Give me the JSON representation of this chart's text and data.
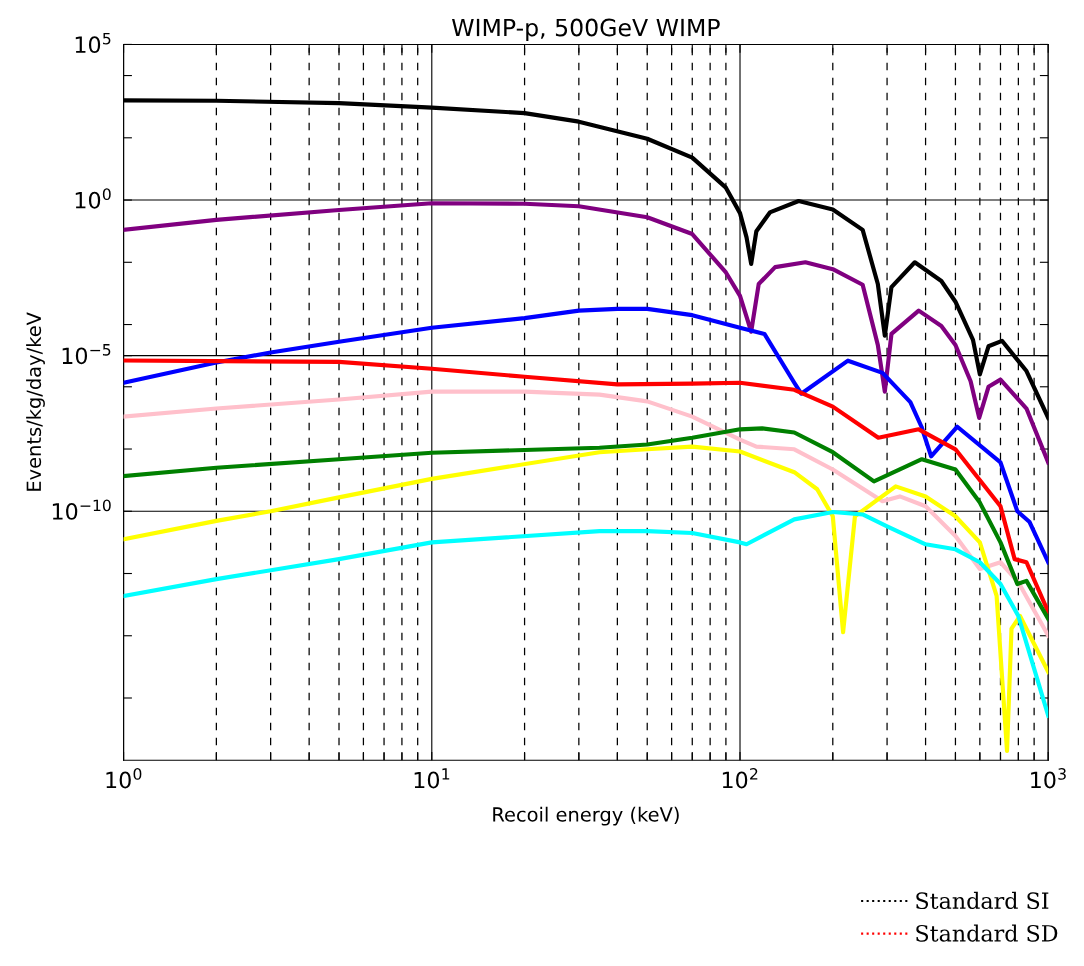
{
  "chart_data": {
    "type": "line",
    "title": "WIMP-p, 500GeV WIMP",
    "xlabel": "Recoil energy (keV)",
    "ylabel": "Events/kg/day/keV",
    "log": "xy",
    "grid": true,
    "legend": "bottom right",
    "line_style": "solid",
    "marker": "none",
    "xlim": [
      1,
      1000
    ],
    "ylim": [
      1e-18,
      100000.0
    ],
    "xticks": [
      {
        "value": 1,
        "label": "10$^{0}$"
      },
      {
        "value": 2,
        "label": null
      },
      {
        "value": 3,
        "label": null
      },
      {
        "value": 4,
        "label": null
      },
      {
        "value": 5,
        "label": null
      },
      {
        "value": 6,
        "label": null
      },
      {
        "value": 7,
        "label": null
      },
      {
        "value": 8,
        "label": null
      },
      {
        "value": 9,
        "label": null
      },
      {
        "value": 10,
        "label": "10$^{1}$"
      },
      {
        "value": 20,
        "label": null
      },
      {
        "value": 30,
        "label": null
      },
      {
        "value": 40,
        "label": null
      },
      {
        "value": 50,
        "label": null
      },
      {
        "value": 60,
        "label": null
      },
      {
        "value": 70,
        "label": null
      },
      {
        "value": 80,
        "label": null
      },
      {
        "value": 90,
        "label": null
      },
      {
        "value": 100,
        "label": "10$^{2}$"
      },
      {
        "value": 200,
        "label": null
      },
      {
        "value": 300,
        "label": null
      },
      {
        "value": 400,
        "label": null
      },
      {
        "value": 500,
        "label": null
      },
      {
        "value": 600,
        "label": null
      },
      {
        "value": 700,
        "label": null
      },
      {
        "value": 800,
        "label": null
      },
      {
        "value": 900,
        "label": null
      },
      {
        "value": 1000,
        "label": "10$^{3}$"
      }
    ],
    "yticks": [
      {
        "value": 100000.0,
        "label": "10$^{5}$"
      },
      {
        "value": 10000.0,
        "label": null
      },
      {
        "value": 100.0,
        "label": null
      },
      {
        "value": 1,
        "label": "10$^{0}$"
      },
      {
        "value": 0.01,
        "label": null
      },
      {
        "value": 0.0001,
        "label": null
      },
      {
        "value": 1e-05,
        "label": "10$^{−5}$"
      },
      {
        "value": 1e-06,
        "label": null
      },
      {
        "value": 1e-08,
        "label": null
      },
      {
        "value": 1e-10,
        "label": "10$^{−10}$"
      },
      {
        "value": 1e-12,
        "label": null
      },
      {
        "value": 1e-14,
        "label": null
      },
      {
        "value": 1e-16,
        "label": null
      }
    ],
    "series": [
      {
        "name": "Standard SI",
        "color": "#000000",
        "x": [
          1,
          2,
          5,
          10,
          20,
          30,
          50,
          70,
          90,
          100,
          105,
          108.7,
          113,
          125,
          155,
          200,
          250,
          280,
          295,
          310,
          369,
          450,
          500,
          570,
          600,
          640,
          708,
          850,
          1000
        ],
        "values": [
          1600.0,
          1550.0,
          1300.0,
          930.0,
          620.0,
          330.0,
          93,
          23,
          2.5,
          0.38,
          0.063,
          0.0089,
          0.1,
          0.4,
          0.93,
          0.5,
          0.11,
          0.002,
          4.4e-05,
          0.0016,
          0.01,
          0.0025,
          0.00054,
          3.2e-05,
          2.5e-06,
          2e-05,
          3e-05,
          3.2e-06,
          1e-07
        ]
      },
      {
        "color": "#800080",
        "x": [
          1,
          2,
          5,
          10,
          20,
          30,
          50,
          70,
          90,
          100,
          108.7,
          115,
          130,
          163,
          200,
          250,
          280,
          295,
          310,
          380,
          450,
          500,
          560,
          597,
          640,
          700,
          850,
          1000
        ],
        "values": [
          0.11,
          0.23,
          0.48,
          0.79,
          0.76,
          0.63,
          0.28,
          0.081,
          0.0047,
          0.00083,
          5.9e-05,
          0.002,
          0.007,
          0.01,
          0.006,
          0.0019,
          2.2e-05,
          7e-07,
          5e-05,
          0.00028,
          9e-05,
          2.2e-05,
          1.5e-06,
          1e-07,
          1e-06,
          1.7e-06,
          2e-07,
          3.7e-09
        ]
      },
      {
        "color": "#0000ff",
        "x": [
          1,
          2,
          3,
          5,
          10,
          20,
          30,
          40,
          50,
          70,
          100,
          120,
          150,
          158,
          224,
          290,
          357,
          388,
          417,
          507,
          700,
          794,
          870,
          1000
        ],
        "values": [
          1.35e-06,
          6e-06,
          1.26e-05,
          2.8e-05,
          7.9e-05,
          0.00016,
          0.00028,
          0.00032,
          0.00032,
          0.0002,
          7.9e-05,
          5e-05,
          1.35e-06,
          6e-07,
          6.9e-06,
          2.8e-06,
          3.2e-07,
          5.2e-08,
          5.8e-09,
          5.2e-08,
          3.7e-09,
          1e-10,
          4.5e-11,
          2.3e-12
        ]
      },
      {
        "name": "Standard SD",
        "color": "#ff0000",
        "x": [
          1,
          5,
          10,
          20,
          40,
          70,
          100,
          150,
          200,
          281,
          380,
          500,
          700,
          778,
          850,
          1000
        ],
        "values": [
          7e-06,
          6.3e-06,
          3.8e-06,
          2.1e-06,
          1.2e-06,
          1.26e-06,
          1.35e-06,
          8e-07,
          2.3e-07,
          2.3e-08,
          4.3e-08,
          9.8e-09,
          1.45e-10,
          2.9e-12,
          2.3e-12,
          5.8e-14
        ]
      },
      {
        "color": "#ffc0cb",
        "x": [
          1,
          2,
          5,
          10,
          20,
          35,
          50,
          70,
          100,
          113,
          150,
          200,
          290,
          330,
          400,
          500,
          600,
          700,
          800,
          1000
        ],
        "values": [
          1.1e-07,
          2e-07,
          3.9e-07,
          7e-07,
          7e-07,
          5.6e-07,
          3.4e-07,
          1.1e-07,
          2e-08,
          1.2e-08,
          9.8e-09,
          2.2e-09,
          2.1e-10,
          3e-10,
          1.45e-10,
          1.6e-11,
          1.4e-12,
          2.3e-12,
          5.2e-13,
          1e-14
        ]
      },
      {
        "color": "#008000",
        "x": [
          1,
          2,
          5,
          10,
          35,
          50,
          70,
          100,
          118,
          150,
          200,
          272,
          389,
          500,
          600,
          700,
          794,
          850,
          1000
        ],
        "values": [
          1.35e-09,
          2.5e-09,
          4.7e-09,
          7.6e-09,
          1.1e-08,
          1.4e-08,
          2.3e-08,
          4.3e-08,
          4.6e-08,
          3.4e-08,
          7.9e-09,
          9.1e-10,
          4.7e-09,
          2.2e-09,
          1.9e-10,
          1e-11,
          4.6e-13,
          5.8e-13,
          3.5e-14
        ]
      },
      {
        "color": "#ffff00",
        "x": [
          1,
          2,
          3,
          5,
          10,
          35,
          50,
          70,
          100,
          150,
          178,
          200,
          216,
          236,
          320,
          400,
          500,
          600,
          680,
          735,
          760,
          810,
          1000
        ],
        "values": [
          1.26e-11,
          4.9e-11,
          1e-10,
          2.8e-10,
          1.1e-09,
          7.9e-09,
          9.8e-09,
          1.2e-08,
          8.3e-09,
          1.8e-09,
          5.1e-10,
          6.9e-11,
          1.3e-14,
          6.9e-11,
          6.3e-10,
          3e-10,
          6.9e-11,
          1e-11,
          1.9e-13,
          2e-18,
          1.7e-14,
          4.3e-14,
          6.9e-16
        ]
      },
      {
        "color": "#00ffff",
        "x": [
          1,
          2,
          5,
          10,
          35,
          50,
          70,
          100,
          105,
          150,
          200,
          250,
          300,
          400,
          500,
          600,
          700,
          800,
          1000
        ],
        "values": [
          1.9e-13,
          6.6e-13,
          2.9e-12,
          1e-11,
          2.3e-11,
          2.3e-11,
          2e-11,
          1e-11,
          8.7e-12,
          5.5e-11,
          9.5e-11,
          7.9e-11,
          3.3e-11,
          8.7e-12,
          6e-12,
          2.3e-12,
          4.6e-13,
          4.3e-14,
          2.7e-17
        ]
      }
    ]
  }
}
